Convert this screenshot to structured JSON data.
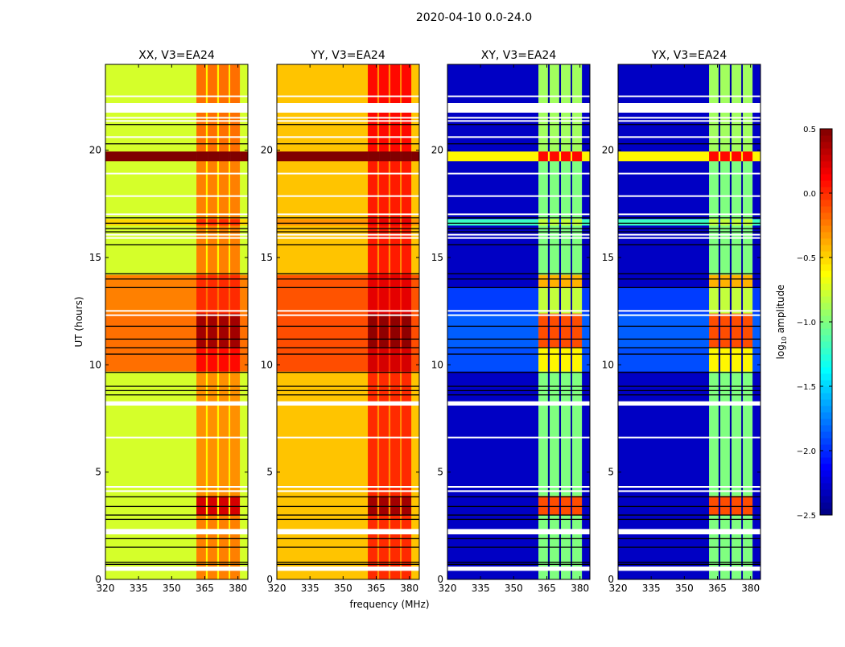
{
  "chart_data": {
    "type": "heatmap",
    "title": "2020-04-10 0.0-24.0",
    "xlabel": "frequency (MHz)",
    "ylabel": "UT (hours)",
    "xlim": [
      320,
      384.5
    ],
    "ylim": [
      0,
      24
    ],
    "xticks": [
      "320",
      "335",
      "350",
      "365",
      "380"
    ],
    "xtick_values": [
      320,
      335,
      350,
      365,
      380
    ],
    "yticks": [
      "0",
      "5",
      "10",
      "15",
      "20"
    ],
    "ytick_values": [
      0,
      5,
      10,
      15,
      20
    ],
    "colorbar": {
      "label": "log10 amplitude",
      "label_main": "log",
      "label_sub": "10",
      "label_rest": " amplitude",
      "colormap": "jet",
      "range": [
        -2.5,
        0.5
      ],
      "ticks": [
        "0.5",
        "0.0",
        "−0.5",
        "−1.0",
        "−1.5",
        "−2.0",
        "−2.5"
      ],
      "tick_values": [
        0.5,
        0.0,
        -0.5,
        -1.0,
        -1.5,
        -2.0,
        -2.5
      ]
    },
    "channel_columns": [
      {
        "f": [
          320,
          361.2
        ],
        "kind": "base"
      },
      {
        "f": [
          361.2,
          365.5
        ],
        "kind": "band"
      },
      {
        "f": [
          365.5,
          366.3
        ],
        "kind": "gap"
      },
      {
        "f": [
          366.3,
          370.6
        ],
        "kind": "band"
      },
      {
        "f": [
          370.6,
          371.4
        ],
        "kind": "gap"
      },
      {
        "f": [
          371.4,
          375.8
        ],
        "kind": "band"
      },
      {
        "f": [
          375.8,
          376.5
        ],
        "kind": "gap"
      },
      {
        "f": [
          376.5,
          380.9
        ],
        "kind": "band"
      },
      {
        "f": [
          380.9,
          384.5
        ],
        "kind": "base"
      }
    ],
    "panels": [
      {
        "title": "XX, V3=EA24",
        "segments": [
          [
            0,
            3.0,
            -0.75,
            -0.25,
            -0.6
          ],
          [
            3.0,
            3.9,
            -0.75,
            0.25,
            -0.6
          ],
          [
            3.9,
            9.7,
            -0.75,
            -0.3,
            -0.6
          ],
          [
            9.7,
            10.8,
            -0.2,
            0.1,
            -0.2
          ],
          [
            10.8,
            12.4,
            -0.2,
            0.4,
            -0.2
          ],
          [
            12.4,
            14.2,
            -0.25,
            0.0,
            -0.2
          ],
          [
            14.2,
            16.5,
            -0.75,
            -0.25,
            -0.6
          ],
          [
            16.5,
            16.8,
            -0.5,
            0.0,
            -0.4
          ],
          [
            16.8,
            19.5,
            -0.75,
            -0.25,
            -0.6
          ],
          [
            19.5,
            19.95,
            0.5,
            0.5,
            0.5
          ],
          [
            19.95,
            24,
            -0.75,
            -0.2,
            -0.6
          ]
        ]
      },
      {
        "title": "YY, V3=EA24",
        "segments": [
          [
            0,
            3.0,
            -0.45,
            0.0,
            -0.3
          ],
          [
            3.0,
            3.9,
            -0.45,
            0.4,
            -0.3
          ],
          [
            3.9,
            9.7,
            -0.45,
            0.0,
            -0.3
          ],
          [
            9.7,
            10.8,
            -0.1,
            0.25,
            0.0
          ],
          [
            10.8,
            12.4,
            -0.1,
            0.45,
            0.0
          ],
          [
            12.4,
            14.2,
            -0.12,
            0.2,
            0.0
          ],
          [
            14.2,
            16.5,
            -0.45,
            0.05,
            -0.3
          ],
          [
            16.5,
            16.8,
            -0.3,
            0.2,
            -0.2
          ],
          [
            16.8,
            19.5,
            -0.45,
            0.05,
            -0.3
          ],
          [
            19.5,
            19.95,
            0.5,
            0.5,
            0.5
          ],
          [
            19.95,
            24,
            -0.45,
            0.1,
            -0.3
          ]
        ]
      },
      {
        "title": "XY, V3=EA24",
        "segments": [
          [
            0,
            3.0,
            -2.3,
            -1.0,
            -2.4
          ],
          [
            3.0,
            3.9,
            -2.3,
            -0.1,
            -2.4
          ],
          [
            3.9,
            9.7,
            -2.3,
            -1.0,
            -2.4
          ],
          [
            9.7,
            10.8,
            -1.9,
            -0.6,
            -2.4
          ],
          [
            10.8,
            12.4,
            -1.85,
            -0.1,
            -2.4
          ],
          [
            12.4,
            13.6,
            -1.95,
            -0.8,
            -2.4
          ],
          [
            13.6,
            14.2,
            -2.3,
            -0.4,
            -2.4
          ],
          [
            14.2,
            16.5,
            -2.3,
            -1.0,
            -2.4
          ],
          [
            16.5,
            16.8,
            -1.2,
            -0.8,
            -2.0
          ],
          [
            16.8,
            19.5,
            -2.3,
            -1.0,
            -2.4
          ],
          [
            19.5,
            19.95,
            -0.6,
            0.1,
            -0.6
          ],
          [
            19.95,
            24,
            -2.3,
            -0.9,
            -2.4
          ]
        ]
      },
      {
        "title": "YX, V3=EA24",
        "segments": [
          [
            0,
            3.0,
            -2.3,
            -1.0,
            -2.4
          ],
          [
            3.0,
            3.9,
            -2.3,
            -0.1,
            -2.4
          ],
          [
            3.9,
            9.7,
            -2.3,
            -1.0,
            -2.4
          ],
          [
            9.7,
            10.8,
            -1.9,
            -0.6,
            -2.4
          ],
          [
            10.8,
            12.4,
            -1.85,
            -0.1,
            -2.4
          ],
          [
            12.4,
            13.6,
            -1.95,
            -0.8,
            -2.4
          ],
          [
            13.6,
            14.2,
            -2.3,
            -0.4,
            -2.4
          ],
          [
            14.2,
            16.5,
            -2.3,
            -1.0,
            -2.4
          ],
          [
            16.5,
            16.8,
            -1.2,
            -0.8,
            -2.0
          ],
          [
            16.8,
            19.5,
            -2.3,
            -1.0,
            -2.4
          ],
          [
            19.5,
            19.95,
            -0.6,
            0.1,
            -0.6
          ],
          [
            19.95,
            24,
            -2.3,
            -0.9,
            -2.4
          ]
        ]
      }
    ],
    "flagged_rows_hours": [
      [
        21.75,
        22.2
      ],
      [
        22.5,
        22.55
      ],
      [
        21.5,
        21.55
      ],
      [
        21.35,
        21.4
      ],
      [
        20.6,
        20.65
      ],
      [
        18.9,
        18.95
      ],
      [
        17.85,
        17.9
      ],
      [
        17.0,
        17.05
      ],
      [
        16.05,
        16.1
      ],
      [
        15.9,
        15.95
      ],
      [
        12.5,
        12.55
      ],
      [
        12.3,
        12.35
      ],
      [
        8.1,
        8.3
      ],
      [
        6.6,
        6.65
      ],
      [
        4.3,
        4.35
      ],
      [
        4.1,
        4.15
      ],
      [
        2.1,
        2.35
      ],
      [
        0.4,
        0.6
      ]
    ],
    "black_rows_hours": [
      21.2,
      20.3,
      16.85,
      16.6,
      16.35,
      16.2,
      15.6,
      14.25,
      14.0,
      13.6,
      11.8,
      11.2,
      10.8,
      10.5,
      9.65,
      9.0,
      8.8,
      8.6,
      3.85,
      3.4,
      3.0,
      2.8,
      1.9,
      1.5,
      0.8,
      0.7
    ]
  }
}
